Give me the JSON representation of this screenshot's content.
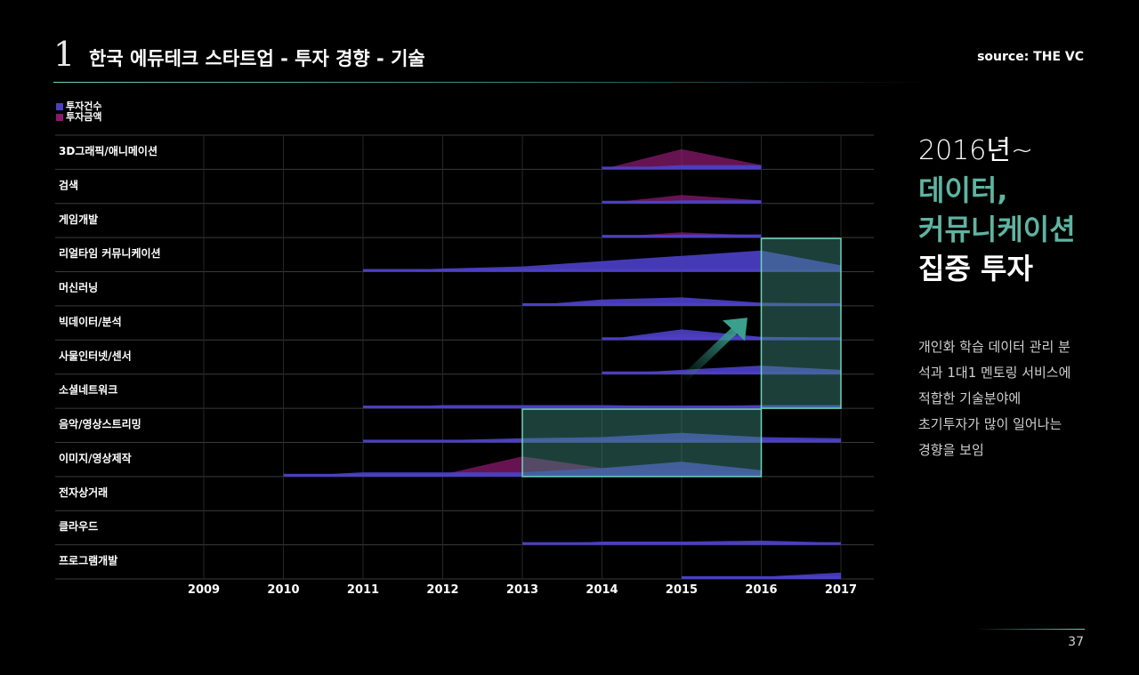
{
  "header": {
    "slide_number": "1",
    "title": "한국 에듀테크 스타트업 - 투자 경향 - 기술",
    "source": "source: THE VC"
  },
  "legend": [
    {
      "label": "투자건수",
      "color": "#4b3fc4"
    },
    {
      "label": "투자금액",
      "color": "#8a1a6e"
    }
  ],
  "colors": {
    "count": "#4b3fc4",
    "amount": "#8a1a6e",
    "highlight_stroke": "#6fd3bd",
    "highlight_fill": "#3f8f7f",
    "accent_text": "#5fb3a1",
    "arrow": "#2f8f7f"
  },
  "chart_data": {
    "type": "area",
    "subtype": "horizon-strip",
    "x": [
      "2009",
      "2010",
      "2011",
      "2012",
      "2013",
      "2014",
      "2015",
      "2016",
      "2017"
    ],
    "rows": [
      {
        "label": "3D그래픽/애니메이션",
        "count": [
          0,
          0,
          0,
          0,
          0,
          0,
          0.2,
          0.2,
          null
        ],
        "amount": [
          0,
          0,
          0,
          0,
          0,
          0,
          0.95,
          0.2,
          null
        ]
      },
      {
        "label": "검색",
        "count": [
          0,
          0,
          0,
          0,
          0,
          0,
          0.15,
          0.15,
          null
        ],
        "amount": [
          0,
          0,
          0,
          0,
          0,
          0,
          0.4,
          0.15,
          null
        ]
      },
      {
        "label": "게임개발",
        "count": [
          0,
          0,
          0,
          0,
          0,
          0,
          0.15,
          0.15,
          null
        ],
        "amount": [
          0,
          0,
          0,
          0,
          0,
          0,
          0.25,
          0.1,
          null
        ]
      },
      {
        "label": "리얼타임 커뮤니케이션",
        "count": [
          0,
          0,
          0,
          0.15,
          0.25,
          0.5,
          0.75,
          1.0,
          0.3
        ],
        "amount": [
          0,
          0,
          0,
          0,
          0,
          0,
          0,
          0,
          0
        ]
      },
      {
        "label": "머신러닝",
        "count": [
          0,
          0,
          0,
          0,
          0,
          0.3,
          0.4,
          0.15,
          0.1
        ],
        "amount": [
          0,
          0,
          0,
          0,
          0,
          0.2,
          0,
          0,
          0
        ]
      },
      {
        "label": "빅데이터/분석",
        "count": [
          0,
          0,
          0,
          0,
          0,
          0,
          0.5,
          0.15,
          0.1
        ],
        "amount": [
          0,
          0,
          0,
          0,
          0,
          0,
          0.3,
          0.1,
          0.1
        ]
      },
      {
        "label": "사물인터넷/센서",
        "count": [
          0,
          0,
          0,
          0,
          0,
          0,
          0.2,
          0.4,
          0.2
        ],
        "amount": [
          0,
          0,
          0,
          0,
          0,
          0,
          0.15,
          0.1,
          0.15
        ]
      },
      {
        "label": "소셜네트워크",
        "count": [
          0,
          0,
          0,
          0.15,
          0.15,
          0.15,
          0.1,
          0.15,
          0.15
        ],
        "amount": [
          0,
          0,
          0,
          0,
          0.1,
          0.05,
          0.05,
          0.05,
          0.05
        ]
      },
      {
        "label": "음악/영상스트리밍",
        "count": [
          0,
          0,
          0,
          0.1,
          0.2,
          0.25,
          0.45,
          0.25,
          0.2
        ],
        "amount": [
          0,
          0,
          0,
          0,
          0.05,
          0.1,
          0.15,
          0.1,
          0.05
        ]
      },
      {
        "label": "이미지/영상제작",
        "count": [
          0,
          0,
          0.2,
          0.2,
          0.2,
          0.4,
          0.7,
          0.3,
          null
        ],
        "amount": [
          0,
          0,
          0,
          0.1,
          0.95,
          0.4,
          0.3,
          0.2,
          null
        ]
      },
      {
        "label": "전자상거래",
        "count": [
          0,
          0,
          0,
          0,
          0,
          0,
          0,
          0,
          0
        ],
        "amount": [
          0,
          0,
          0,
          0,
          0,
          0,
          0,
          0,
          0
        ]
      },
      {
        "label": "클라우드",
        "count": [
          0,
          0,
          0,
          0,
          0,
          0.15,
          0.15,
          0.2,
          0.1
        ],
        "amount": [
          0,
          0,
          0,
          0,
          0,
          0,
          0,
          0,
          0
        ]
      },
      {
        "label": "프로그램개발",
        "count": [
          0,
          0,
          0,
          0,
          0,
          0,
          0,
          0.1,
          0.3
        ],
        "amount": [
          0,
          0,
          0,
          0,
          0,
          0,
          0,
          0,
          0
        ]
      }
    ],
    "highlights": [
      {
        "rows": [
          "리얼타임 커뮤니케이션",
          "소셜네트워크"
        ],
        "x_range": [
          "2016",
          "2017"
        ]
      },
      {
        "rows": [
          "음악/영상스트리밍",
          "이미지/영상제작"
        ],
        "x_range": [
          "2013",
          "2016"
        ]
      }
    ],
    "annotation": {
      "type": "arrow",
      "direction": "up-right"
    },
    "grid": true
  },
  "highlight": {
    "line1": "2016년~",
    "line2": "데이터,",
    "line3": "커뮤니케이션",
    "line4": "집중 투자",
    "description_lines": [
      "개인화 학습 데이터 관리 분",
      "석과 1대1 멘토링 서비스에",
      "적합한 기술분야에",
      "초기투자가 많이 일어나는",
      "경향을 보임"
    ]
  },
  "footer": {
    "page_number": "37"
  }
}
